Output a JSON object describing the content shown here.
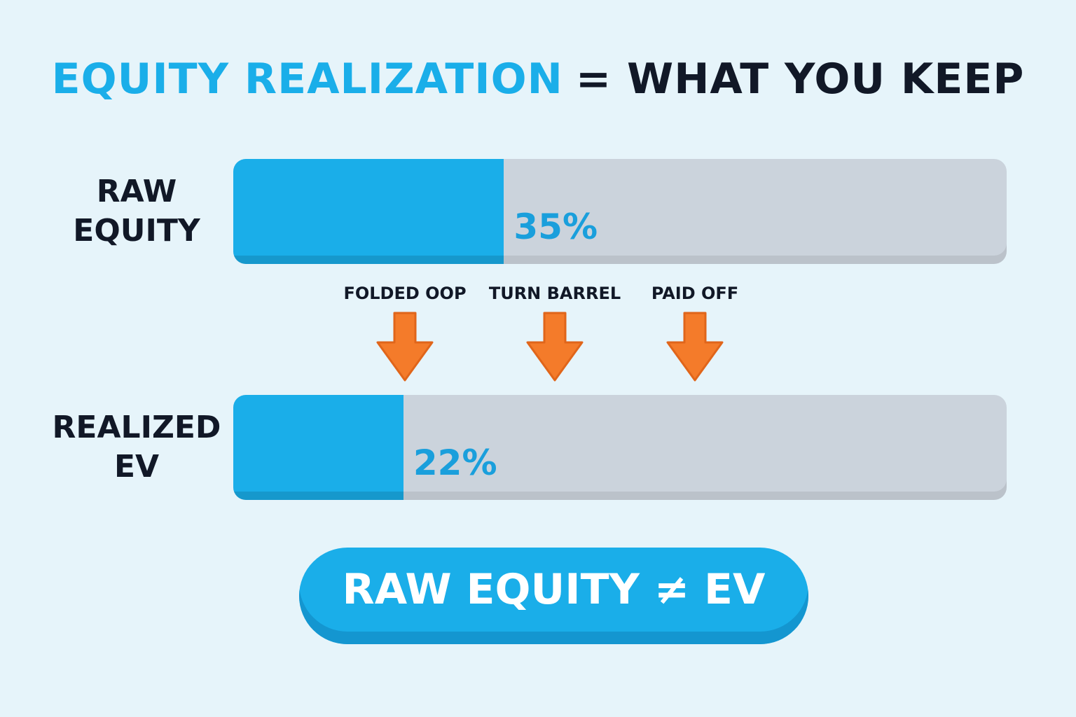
{
  "chart_data": {
    "type": "bar",
    "orientation": "horizontal",
    "title_highlight": "EQUITY REALIZATION",
    "title": "= WHAT YOU KEEP",
    "categories": [
      "RAW EQUITY",
      "REALIZED EV"
    ],
    "values": [
      35,
      22
    ],
    "value_labels": [
      "35%",
      "22%"
    ],
    "xlim": [
      0,
      100
    ],
    "color": "#1aaee9",
    "track_color": "#cbd3dc",
    "annotations": [
      "FOLDED OOP",
      "TURN BARREL",
      "PAID OFF"
    ],
    "footer": "RAW EQUITY ≠ EV"
  }
}
